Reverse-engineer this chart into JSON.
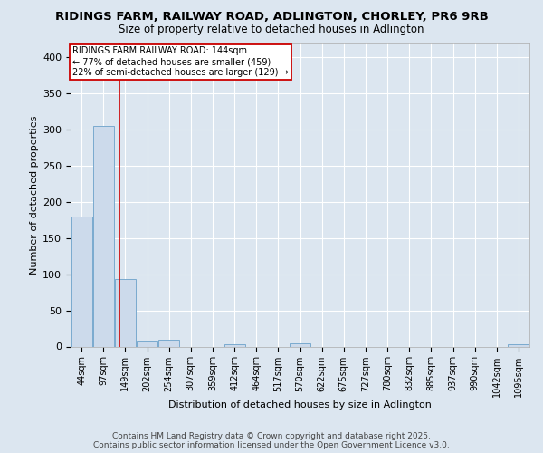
{
  "title": "RIDINGS FARM, RAILWAY ROAD, ADLINGTON, CHORLEY, PR6 9RB",
  "subtitle": "Size of property relative to detached houses in Adlington",
  "xlabel": "Distribution of detached houses by size in Adlington",
  "ylabel": "Number of detached properties",
  "categories": [
    "44sqm",
    "97sqm",
    "149sqm",
    "202sqm",
    "254sqm",
    "307sqm",
    "359sqm",
    "412sqm",
    "464sqm",
    "517sqm",
    "570sqm",
    "622sqm",
    "675sqm",
    "727sqm",
    "780sqm",
    "832sqm",
    "885sqm",
    "937sqm",
    "990sqm",
    "1042sqm",
    "1095sqm"
  ],
  "values": [
    180,
    305,
    93,
    8,
    9,
    0,
    0,
    3,
    0,
    0,
    4,
    0,
    0,
    0,
    0,
    0,
    0,
    0,
    0,
    0,
    3
  ],
  "bar_color": "#ccdaeb",
  "bar_edge_color": "#7aaacf",
  "bar_linewidth": 0.7,
  "ref_line_color": "#cc0000",
  "ref_line_x": 1.75,
  "annotation_line1": "RIDINGS FARM RAILWAY ROAD: 144sqm",
  "annotation_line2": "← 77% of detached houses are smaller (459)",
  "annotation_line3": "22% of semi-detached houses are larger (129) →",
  "annotation_box_edgecolor": "#cc0000",
  "annotation_fontsize": 7,
  "ylim": [
    0,
    420
  ],
  "yticks": [
    0,
    50,
    100,
    150,
    200,
    250,
    300,
    350,
    400
  ],
  "footer_line1": "Contains HM Land Registry data © Crown copyright and database right 2025.",
  "footer_line2": "Contains public sector information licensed under the Open Government Licence v3.0.",
  "title_fontsize": 9.5,
  "subtitle_fontsize": 8.5,
  "xlabel_fontsize": 8,
  "ylabel_fontsize": 8,
  "tick_fontsize": 7,
  "ytick_fontsize": 8,
  "footer_fontsize": 6.5,
  "background_color": "#dce6f0",
  "grid_color": "#ffffff",
  "spine_color": "#aaaaaa"
}
